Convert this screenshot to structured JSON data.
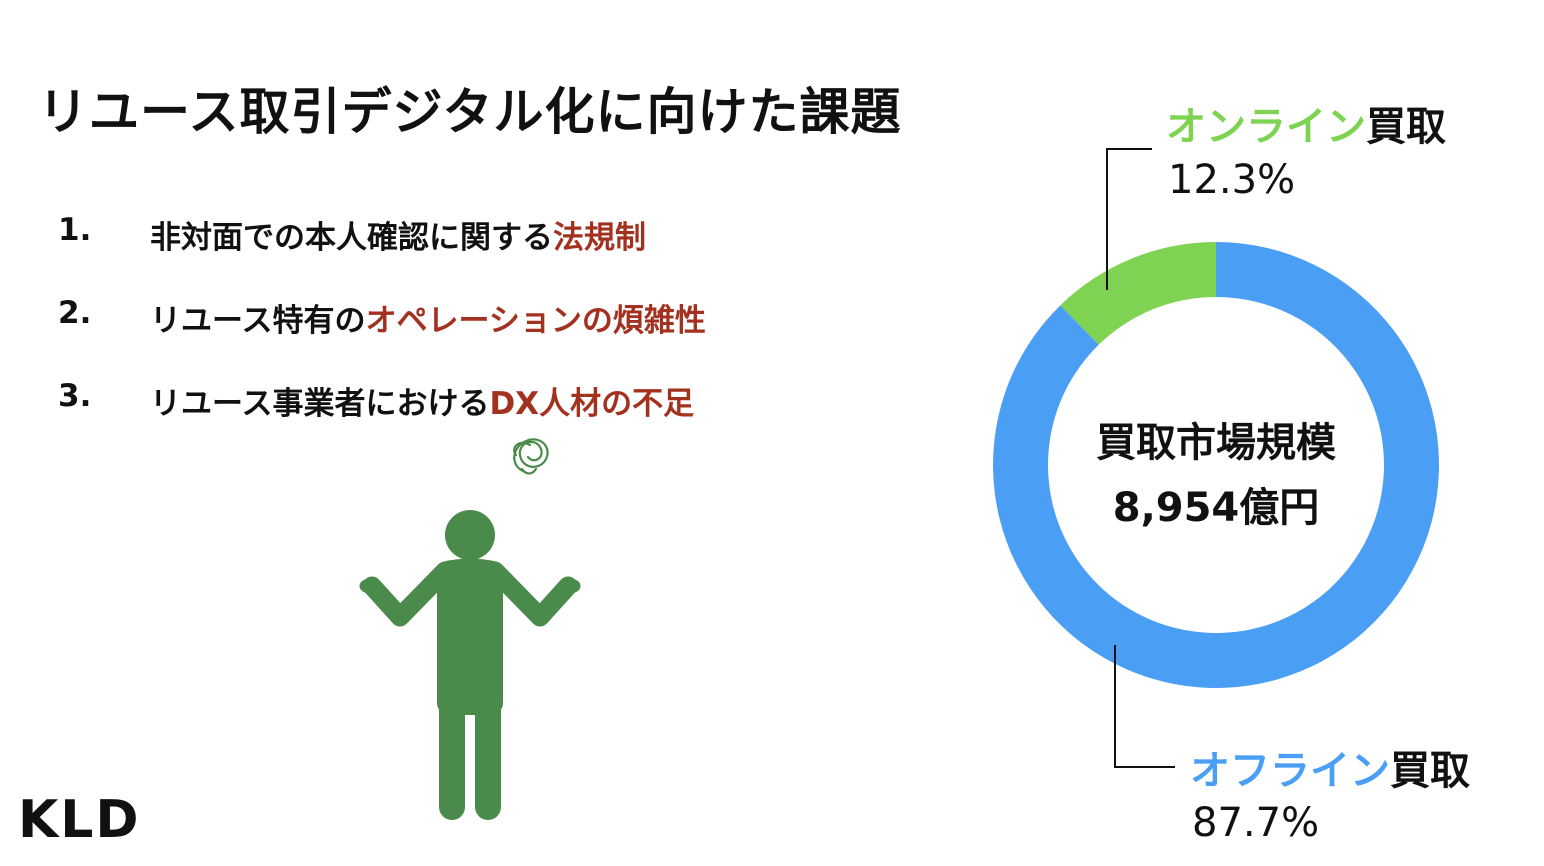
{
  "title": "リユース取引デジタル化に向けた課題",
  "issues": [
    {
      "num": "1.",
      "text": "非対面での本人確認に関する",
      "highlight": "法規制"
    },
    {
      "num": "2.",
      "text": "リユース特有の",
      "highlight": "オペレーションの煩雑性"
    },
    {
      "num": "3.",
      "text": "リユース事業者における",
      "highlight": "DX人材の不足"
    }
  ],
  "logo": "KLD",
  "colors": {
    "online": "#7ed353",
    "offline": "#4a9ff5",
    "highlight": "#a3311f",
    "figure": "#4a8a4a"
  },
  "chart_data": {
    "type": "pie",
    "style": "donut",
    "center_label": "買取市場規模",
    "center_value": "8,954億円",
    "slices": [
      {
        "name_colored": "オンライン",
        "name_suffix": "買取",
        "value": 12.3,
        "value_label": "12.3%",
        "color": "#7ed353"
      },
      {
        "name_colored": "オフライン",
        "name_suffix": "買取",
        "value": 87.7,
        "value_label": "87.7%",
        "color": "#4a9ff5"
      }
    ]
  }
}
